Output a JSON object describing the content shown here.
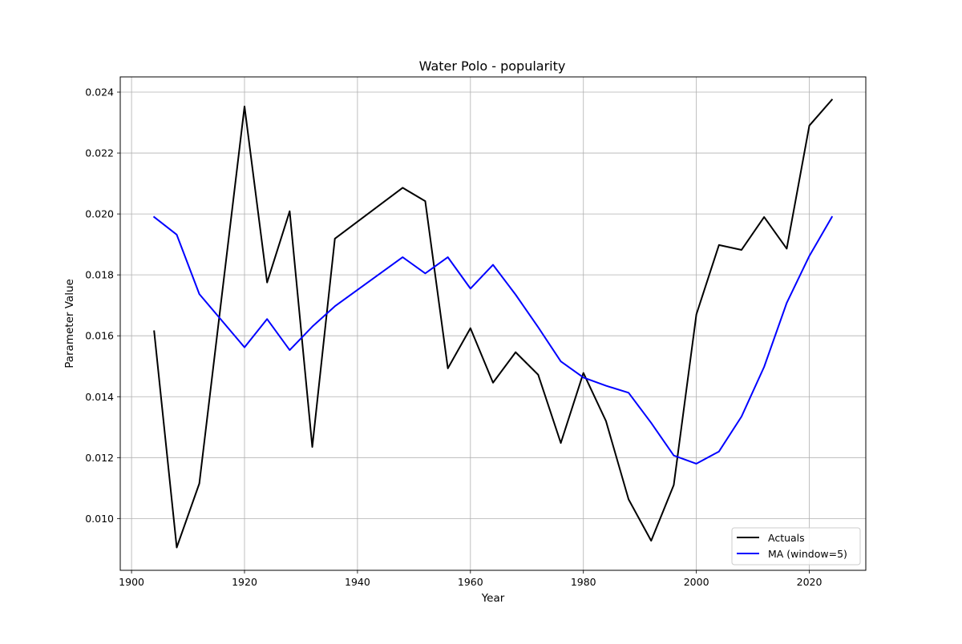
{
  "chart_data": {
    "type": "line",
    "title": "Water Polo - popularity",
    "xlabel": "Year",
    "ylabel": "Parameter Value",
    "xlim": [
      1898,
      2030
    ],
    "ylim": [
      0.0083,
      0.0245
    ],
    "xticks": [
      1900,
      1920,
      1940,
      1960,
      1980,
      2000,
      2020
    ],
    "yticks": [
      0.01,
      0.012,
      0.014,
      0.016,
      0.018,
      0.02,
      0.022,
      0.024
    ],
    "ytick_labels": [
      "0.010",
      "0.012",
      "0.014",
      "0.016",
      "0.018",
      "0.020",
      "0.022",
      "0.024"
    ],
    "grid": true,
    "legend_position": "lower-right",
    "x": [
      1904,
      1908,
      1912,
      1920,
      1924,
      1928,
      1932,
      1936,
      1948,
      1952,
      1956,
      1960,
      1964,
      1968,
      1972,
      1976,
      1980,
      1984,
      1988,
      1992,
      1996,
      2000,
      2004,
      2008,
      2012,
      2016,
      2020,
      2024
    ],
    "series": [
      {
        "name": "Actuals",
        "color": "#000000",
        "values": [
          0.01615,
          0.00905,
          0.01115,
          0.02353,
          0.01775,
          0.02009,
          0.01235,
          0.01919,
          0.02086,
          0.02042,
          0.01493,
          0.01625,
          0.01446,
          0.01546,
          0.01472,
          0.01248,
          0.01478,
          0.0132,
          0.01063,
          0.00927,
          0.0111,
          0.0167,
          0.01898,
          0.01882,
          0.0199,
          0.01886,
          0.0229,
          0.02375
        ]
      },
      {
        "name": "MA (window=5)",
        "color": "#0000ff",
        "values": [
          0.0199,
          0.01932,
          0.01737,
          0.01562,
          0.01655,
          0.01553,
          0.0163,
          0.01697,
          0.01858,
          0.01805,
          0.01858,
          0.01755,
          0.01833,
          0.01735,
          0.01628,
          0.01516,
          0.01463,
          0.01436,
          0.01413,
          0.01314,
          0.01207,
          0.0118,
          0.0122,
          0.01335,
          0.01498,
          0.01708,
          0.01862,
          0.0199
        ]
      }
    ]
  }
}
